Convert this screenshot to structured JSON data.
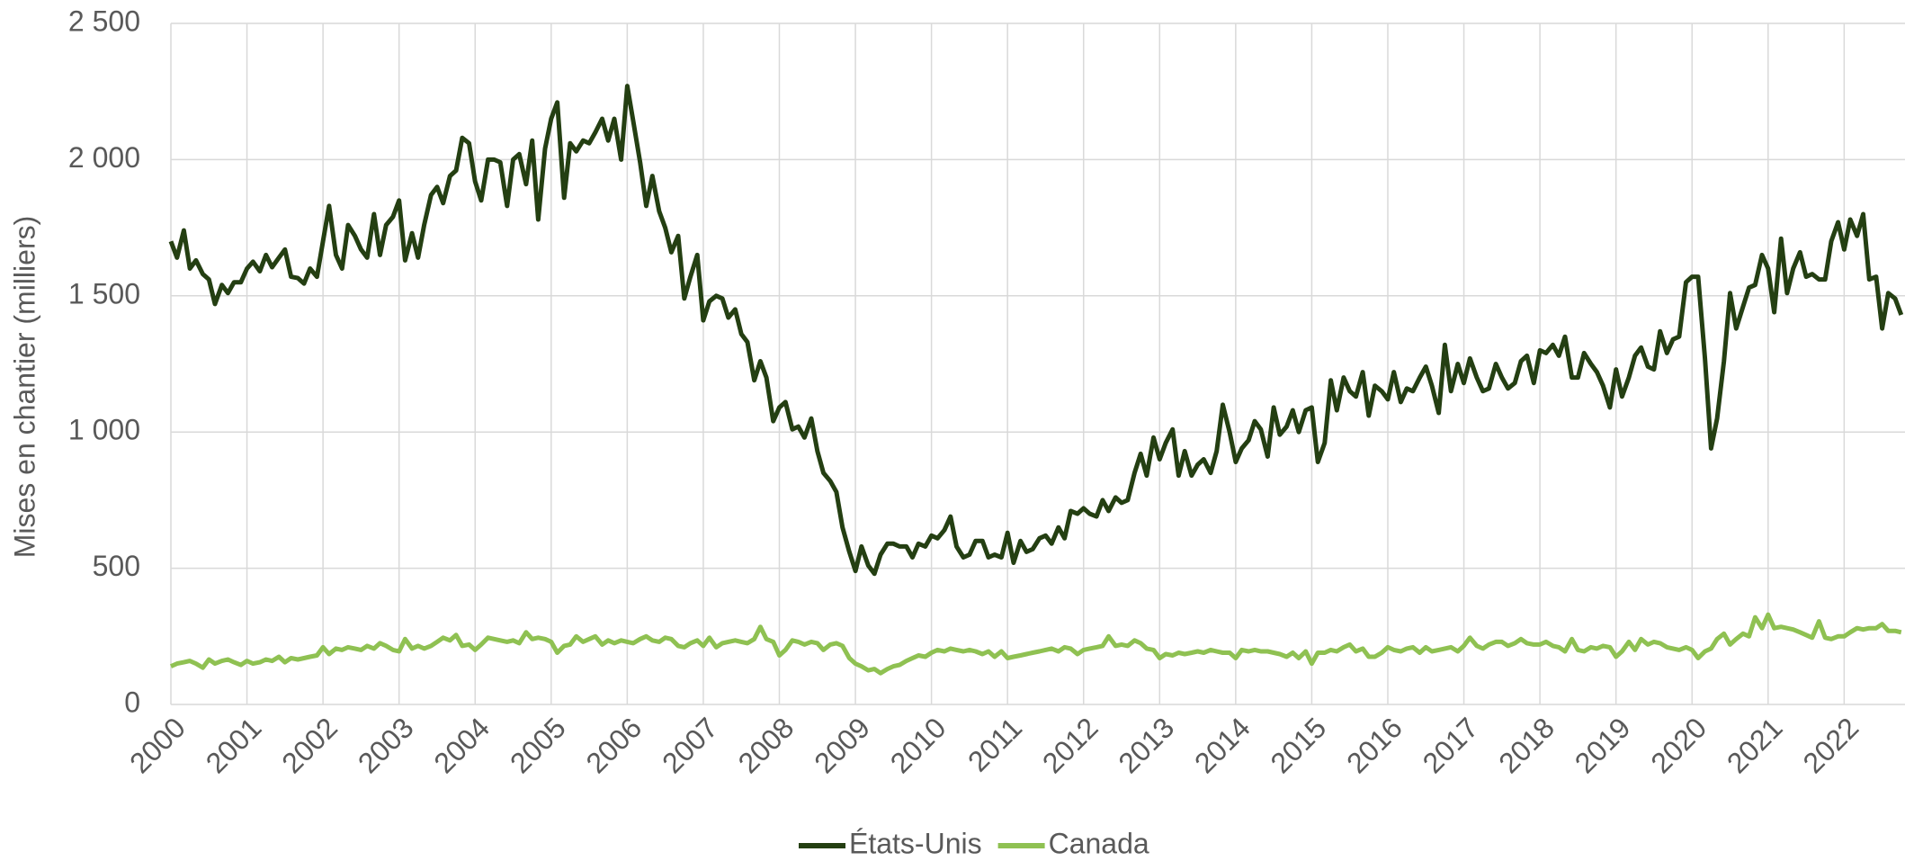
{
  "chart_data": {
    "type": "line",
    "ylabel": "Mises en chantier (milliers)",
    "xlim": [
      2000,
      2022.8
    ],
    "xticks": [
      2000,
      2001,
      2002,
      2003,
      2004,
      2005,
      2006,
      2007,
      2008,
      2009,
      2010,
      2011,
      2012,
      2013,
      2014,
      2015,
      2016,
      2017,
      2018,
      2019,
      2020,
      2021,
      2022
    ],
    "ylim": [
      0,
      2500
    ],
    "yticks": [
      0,
      500,
      {
        "value": 1000,
        "label": "1 000"
      },
      {
        "value": 1500,
        "label": "1 500"
      },
      {
        "value": 2000,
        "label": "2 000"
      },
      {
        "value": 2500,
        "label": "2 500"
      }
    ],
    "grid": true,
    "legend": "bottom",
    "x": [
      2000,
      2000.08,
      2000.17,
      2000.25,
      2000.33,
      2000.42,
      2000.5,
      2000.58,
      2000.67,
      2000.75,
      2000.83,
      2000.92,
      2001,
      2001.08,
      2001.17,
      2001.25,
      2001.33,
      2001.42,
      2001.5,
      2001.58,
      2001.67,
      2001.75,
      2001.83,
      2001.92,
      2002,
      2002.08,
      2002.17,
      2002.25,
      2002.33,
      2002.42,
      2002.5,
      2002.58,
      2002.67,
      2002.75,
      2002.83,
      2002.92,
      2003,
      2003.08,
      2003.17,
      2003.25,
      2003.33,
      2003.42,
      2003.5,
      2003.58,
      2003.67,
      2003.75,
      2003.83,
      2003.92,
      2004,
      2004.08,
      2004.17,
      2004.25,
      2004.33,
      2004.42,
      2004.5,
      2004.58,
      2004.67,
      2004.75,
      2004.83,
      2004.92,
      2005,
      2005.08,
      2005.17,
      2005.25,
      2005.33,
      2005.42,
      2005.5,
      2005.58,
      2005.67,
      2005.75,
      2005.83,
      2005.92,
      2006,
      2006.08,
      2006.17,
      2006.25,
      2006.33,
      2006.42,
      2006.5,
      2006.58,
      2006.67,
      2006.75,
      2006.83,
      2006.92,
      2007,
      2007.08,
      2007.17,
      2007.25,
      2007.33,
      2007.42,
      2007.5,
      2007.58,
      2007.67,
      2007.75,
      2007.83,
      2007.92,
      2008,
      2008.08,
      2008.17,
      2008.25,
      2008.33,
      2008.42,
      2008.5,
      2008.58,
      2008.67,
      2008.75,
      2008.83,
      2008.92,
      2009,
      2009.08,
      2009.17,
      2009.25,
      2009.33,
      2009.42,
      2009.5,
      2009.58,
      2009.67,
      2009.75,
      2009.83,
      2009.92,
      2010,
      2010.08,
      2010.17,
      2010.25,
      2010.33,
      2010.42,
      2010.5,
      2010.58,
      2010.67,
      2010.75,
      2010.83,
      2010.92,
      2011,
      2011.08,
      2011.17,
      2011.25,
      2011.33,
      2011.42,
      2011.5,
      2011.58,
      2011.67,
      2011.75,
      2011.83,
      2011.92,
      2012,
      2012.08,
      2012.17,
      2012.25,
      2012.33,
      2012.42,
      2012.5,
      2012.58,
      2012.67,
      2012.75,
      2012.83,
      2012.92,
      2013,
      2013.08,
      2013.17,
      2013.25,
      2013.33,
      2013.42,
      2013.5,
      2013.58,
      2013.67,
      2013.75,
      2013.83,
      2013.92,
      2014,
      2014.08,
      2014.17,
      2014.25,
      2014.33,
      2014.42,
      2014.5,
      2014.58,
      2014.67,
      2014.75,
      2014.83,
      2014.92,
      2015,
      2015.08,
      2015.17,
      2015.25,
      2015.33,
      2015.42,
      2015.5,
      2015.58,
      2015.67,
      2015.75,
      2015.83,
      2015.92,
      2016,
      2016.08,
      2016.17,
      2016.25,
      2016.33,
      2016.42,
      2016.5,
      2016.58,
      2016.67,
      2016.75,
      2016.83,
      2016.92,
      2017,
      2017.08,
      2017.17,
      2017.25,
      2017.33,
      2017.42,
      2017.5,
      2017.58,
      2017.67,
      2017.75,
      2017.83,
      2017.92,
      2018,
      2018.08,
      2018.17,
      2018.25,
      2018.33,
      2018.42,
      2018.5,
      2018.58,
      2018.67,
      2018.75,
      2018.83,
      2018.92,
      2019,
      2019.08,
      2019.17,
      2019.25,
      2019.33,
      2019.42,
      2019.5,
      2019.58,
      2019.67,
      2019.75,
      2019.83,
      2019.92,
      2020,
      2020.08,
      2020.17,
      2020.25,
      2020.33,
      2020.42,
      2020.5,
      2020.58,
      2020.67,
      2020.75,
      2020.83,
      2020.92,
      2021,
      2021.08,
      2021.17,
      2021.25,
      2021.33,
      2021.42,
      2021.5,
      2021.58,
      2021.67,
      2021.75,
      2021.83,
      2021.92,
      2022,
      2022.08,
      2022.17,
      2022.25,
      2022.33,
      2022.42,
      2022.5,
      2022.58,
      2022.67,
      2022.75
    ],
    "series": [
      {
        "name": "États-Unis",
        "color": "#243f12",
        "values": [
          1700,
          1640,
          1740,
          1600,
          1630,
          1580,
          1560,
          1470,
          1540,
          1510,
          1550,
          1550,
          1600,
          1625,
          1590,
          1650,
          1605,
          1640,
          1670,
          1570,
          1565,
          1545,
          1600,
          1570,
          1700,
          1830,
          1650,
          1600,
          1760,
          1720,
          1670,
          1640,
          1800,
          1650,
          1760,
          1790,
          1850,
          1630,
          1730,
          1640,
          1760,
          1870,
          1900,
          1840,
          1940,
          1960,
          2080,
          2060,
          1920,
          1850,
          2000,
          2000,
          1990,
          1830,
          2000,
          2020,
          1910,
          2070,
          1780,
          2040,
          2150,
          2210,
          1860,
          2060,
          2030,
          2070,
          2060,
          2100,
          2150,
          2070,
          2150,
          2000,
          2270,
          2140,
          1990,
          1830,
          1940,
          1810,
          1750,
          1660,
          1720,
          1490,
          1570,
          1650,
          1410,
          1480,
          1500,
          1490,
          1420,
          1450,
          1360,
          1330,
          1190,
          1260,
          1200,
          1040,
          1090,
          1110,
          1010,
          1020,
          980,
          1050,
          930,
          850,
          820,
          780,
          650,
          560,
          490,
          580,
          510,
          480,
          550,
          590,
          590,
          580,
          580,
          540,
          590,
          580,
          620,
          610,
          640,
          690,
          580,
          540,
          550,
          600,
          600,
          540,
          550,
          540,
          630,
          520,
          600,
          560,
          570,
          610,
          620,
          590,
          650,
          610,
          710,
          700,
          720,
          700,
          690,
          750,
          710,
          760,
          740,
          750,
          850,
          920,
          840,
          980,
          900,
          960,
          1010,
          840,
          930,
          840,
          880,
          900,
          850,
          930,
          1100,
          1000,
          890,
          940,
          970,
          1040,
          1010,
          910,
          1090,
          990,
          1020,
          1080,
          1000,
          1080,
          1090,
          890,
          960,
          1190,
          1080,
          1200,
          1150,
          1130,
          1220,
          1060,
          1170,
          1150,
          1120,
          1220,
          1110,
          1160,
          1150,
          1200,
          1240,
          1170,
          1070,
          1320,
          1150,
          1250,
          1180,
          1270,
          1200,
          1150,
          1160,
          1250,
          1200,
          1160,
          1180,
          1260,
          1280,
          1180,
          1300,
          1290,
          1320,
          1280,
          1350,
          1200,
          1200,
          1290,
          1250,
          1220,
          1170,
          1090,
          1230,
          1130,
          1200,
          1280,
          1310,
          1240,
          1230,
          1370,
          1290,
          1340,
          1350,
          1550,
          1570,
          1570,
          1270,
          940,
          1050,
          1260,
          1510,
          1380,
          1460,
          1530,
          1540,
          1650,
          1600,
          1440,
          1710,
          1510,
          1600,
          1660,
          1570,
          1580,
          1560,
          1560,
          1700,
          1770,
          1670,
          1780,
          1720,
          1800,
          1560,
          1570,
          1380,
          1510,
          1490,
          1430
        ]
      },
      {
        "name": "Canada",
        "color": "#8fc152",
        "values": [
          140,
          150,
          155,
          160,
          150,
          135,
          165,
          150,
          160,
          165,
          155,
          145,
          160,
          150,
          155,
          165,
          160,
          175,
          155,
          170,
          165,
          170,
          175,
          180,
          210,
          185,
          205,
          200,
          210,
          205,
          200,
          215,
          205,
          225,
          215,
          200,
          195,
          240,
          205,
          215,
          205,
          215,
          230,
          245,
          235,
          255,
          215,
          220,
          200,
          220,
          245,
          240,
          235,
          230,
          235,
          225,
          265,
          240,
          245,
          240,
          230,
          190,
          215,
          220,
          250,
          230,
          240,
          250,
          220,
          235,
          225,
          235,
          230,
          225,
          240,
          250,
          235,
          230,
          245,
          240,
          215,
          210,
          225,
          235,
          215,
          245,
          210,
          225,
          230,
          235,
          230,
          225,
          240,
          285,
          240,
          230,
          180,
          200,
          235,
          230,
          220,
          230,
          225,
          200,
          220,
          225,
          215,
          170,
          150,
          140,
          125,
          130,
          115,
          130,
          140,
          145,
          160,
          170,
          180,
          175,
          190,
          200,
          195,
          205,
          200,
          195,
          200,
          195,
          185,
          195,
          175,
          195,
          170,
          175,
          180,
          185,
          190,
          195,
          200,
          205,
          195,
          210,
          205,
          185,
          200,
          205,
          210,
          215,
          250,
          215,
          220,
          215,
          235,
          225,
          205,
          200,
          170,
          185,
          180,
          190,
          185,
          190,
          195,
          190,
          200,
          195,
          190,
          190,
          170,
          200,
          195,
          200,
          195,
          195,
          190,
          185,
          175,
          190,
          170,
          195,
          150,
          190,
          190,
          200,
          195,
          210,
          220,
          195,
          205,
          175,
          175,
          190,
          210,
          200,
          195,
          205,
          210,
          190,
          210,
          195,
          200,
          205,
          210,
          195,
          215,
          245,
          215,
          205,
          220,
          230,
          230,
          215,
          225,
          240,
          225,
          220,
          220,
          230,
          215,
          210,
          195,
          240,
          200,
          195,
          210,
          205,
          215,
          210,
          175,
          195,
          230,
          200,
          240,
          220,
          230,
          225,
          210,
          205,
          200,
          210,
          200,
          170,
          195,
          205,
          240,
          260,
          220,
          240,
          260,
          250,
          320,
          280,
          330,
          280,
          285,
          280,
          275,
          265,
          255,
          245,
          305,
          245,
          240,
          250,
          250,
          265,
          280,
          275,
          280,
          280,
          295,
          270,
          270,
          265
        ]
      }
    ]
  }
}
